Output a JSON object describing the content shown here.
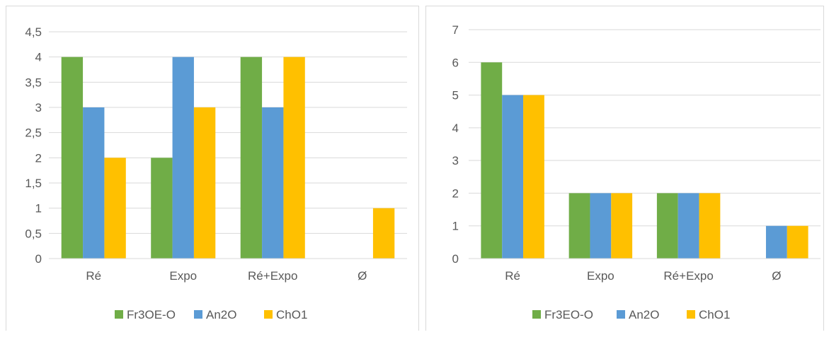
{
  "colors": {
    "series1": "#70ad47",
    "series2": "#5b9bd5",
    "series3": "#ffc000",
    "grid": "#d9d9d9",
    "text": "#595959"
  },
  "chart_data": [
    {
      "type": "bar",
      "title": "",
      "xlabel": "",
      "ylabel": "",
      "categories": [
        "Ré",
        "Expo",
        "Ré+Expo",
        "Ø"
      ],
      "ylim": [
        0,
        4.5
      ],
      "yticks": [
        "0",
        "0,5",
        "1",
        "1,5",
        "2",
        "2,5",
        "3",
        "3,5",
        "4",
        "4,5"
      ],
      "grid": true,
      "legend": "bottom",
      "series": [
        {
          "name": "Fr3OE-O",
          "color": "#70ad47",
          "values": [
            4,
            2,
            4,
            0
          ]
        },
        {
          "name": "An2O",
          "color": "#5b9bd5",
          "values": [
            3,
            4,
            3,
            0
          ]
        },
        {
          "name": "ChO1",
          "color": "#ffc000",
          "values": [
            2,
            3,
            4,
            1
          ]
        }
      ]
    },
    {
      "type": "bar",
      "title": "",
      "xlabel": "",
      "ylabel": "",
      "categories": [
        "Ré",
        "Expo",
        "Ré+Expo",
        "Ø"
      ],
      "ylim": [
        0,
        7
      ],
      "yticks": [
        "0",
        "1",
        "2",
        "3",
        "4",
        "5",
        "6",
        "7"
      ],
      "grid": true,
      "legend": "bottom",
      "series": [
        {
          "name": "Fr3EO-O",
          "color": "#70ad47",
          "values": [
            6,
            2,
            2,
            0
          ]
        },
        {
          "name": "An2O",
          "color": "#5b9bd5",
          "values": [
            5,
            2,
            2,
            1
          ]
        },
        {
          "name": "ChO1",
          "color": "#ffc000",
          "values": [
            5,
            2,
            2,
            1
          ]
        }
      ]
    }
  ]
}
